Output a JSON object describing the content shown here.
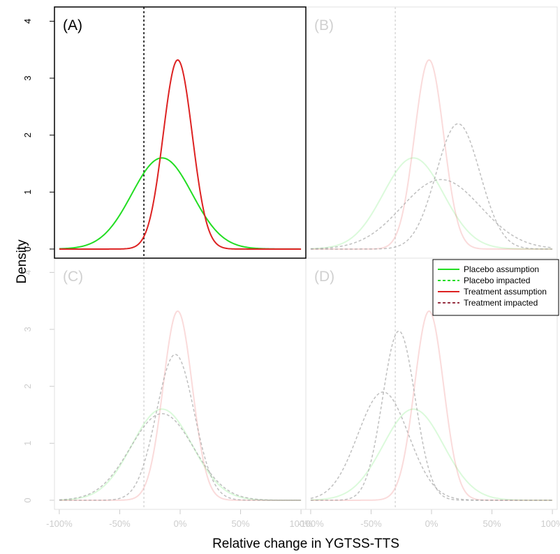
{
  "chart_data": {
    "type": "line",
    "xlabel": "Relative change in YGTSS-TTS",
    "ylabel": "Density",
    "x_ticks": [
      "-100%",
      "-50%",
      "0%",
      "50%",
      "100%"
    ],
    "y_ticks": [
      "0",
      "1",
      "2",
      "3",
      "4"
    ],
    "xlim": [
      -1.0,
      1.0
    ],
    "ylim": [
      0,
      4
    ],
    "reference_x": -0.3,
    "legend": {
      "placement": "top-right",
      "entries": [
        {
          "label": "Placebo assumption",
          "color": "#22dd22",
          "style": "solid"
        },
        {
          "label": "Placebo impacted",
          "color": "#22dd22",
          "style": "dashed"
        },
        {
          "label": "Treatment assumption",
          "color": "#dd2222",
          "style": "solid"
        },
        {
          "label": "Treatment impacted",
          "color": "#993344",
          "style": "dashed"
        }
      ]
    },
    "panels": [
      {
        "label": "(A)",
        "active": true,
        "series": [
          {
            "name": "Placebo assumption",
            "color": "#22dd22",
            "dash": false,
            "mean": -0.15,
            "peak": 1.6
          },
          {
            "name": "Treatment assumption",
            "color": "#dd2222",
            "dash": false,
            "mean": -0.02,
            "peak": 3.32
          }
        ]
      },
      {
        "label": "(B)",
        "active": false,
        "series": [
          {
            "name": "Placebo assumption",
            "color": "#22dd22",
            "dash": false,
            "mean": -0.15,
            "peak": 1.6
          },
          {
            "name": "Treatment assumption",
            "color": "#dd2222",
            "dash": false,
            "mean": -0.02,
            "peak": 3.32
          },
          {
            "name": "Placebo impacted",
            "color": "#888888",
            "dash": true,
            "mean": 0.08,
            "peak": 1.22
          },
          {
            "name": "Treatment impacted",
            "color": "#888888",
            "dash": true,
            "mean": 0.22,
            "peak": 2.2
          }
        ]
      },
      {
        "label": "(C)",
        "active": false,
        "series": [
          {
            "name": "Placebo assumption",
            "color": "#22dd22",
            "dash": false,
            "mean": -0.15,
            "peak": 1.6
          },
          {
            "name": "Treatment assumption",
            "color": "#dd2222",
            "dash": false,
            "mean": -0.02,
            "peak": 3.32
          },
          {
            "name": "Placebo impacted",
            "color": "#888888",
            "dash": true,
            "mean": -0.15,
            "peak": 1.52
          },
          {
            "name": "Treatment impacted",
            "color": "#888888",
            "dash": true,
            "mean": -0.04,
            "peak": 2.56
          }
        ]
      },
      {
        "label": "(D)",
        "active": false,
        "series": [
          {
            "name": "Placebo assumption",
            "color": "#22dd22",
            "dash": false,
            "mean": -0.15,
            "peak": 1.6
          },
          {
            "name": "Treatment assumption",
            "color": "#dd2222",
            "dash": false,
            "mean": -0.02,
            "peak": 3.32
          },
          {
            "name": "Placebo impacted",
            "color": "#888888",
            "dash": true,
            "mean": -0.4,
            "peak": 1.9
          },
          {
            "name": "Treatment impacted",
            "color": "#888888",
            "dash": true,
            "mean": -0.27,
            "peak": 2.97
          }
        ]
      }
    ]
  }
}
